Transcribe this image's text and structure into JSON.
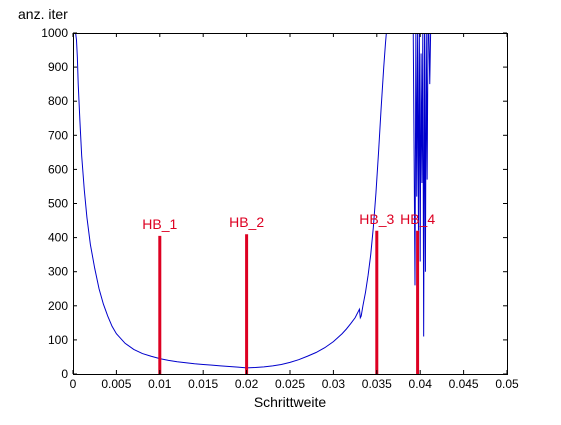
{
  "chart_data": {
    "type": "line",
    "xlabel": "Schrittweite",
    "ylabel": "anz. iter",
    "xlim": [
      0,
      0.05
    ],
    "ylim": [
      0,
      1000
    ],
    "xticks": [
      {
        "value": 0,
        "label": "0"
      },
      {
        "value": 0.005,
        "label": "0.005"
      },
      {
        "value": 0.01,
        "label": "0.01"
      },
      {
        "value": 0.015,
        "label": "0.015"
      },
      {
        "value": 0.02,
        "label": "0.02"
      },
      {
        "value": 0.025,
        "label": "0.025"
      },
      {
        "value": 0.03,
        "label": "0.03"
      },
      {
        "value": 0.035,
        "label": "0.035"
      },
      {
        "value": 0.04,
        "label": "0.04"
      },
      {
        "value": 0.045,
        "label": "0.045"
      },
      {
        "value": 0.05,
        "label": "0.05"
      }
    ],
    "yticks": [
      {
        "value": 0,
        "label": "0"
      },
      {
        "value": 100,
        "label": "100"
      },
      {
        "value": 200,
        "label": "200"
      },
      {
        "value": 300,
        "label": "300"
      },
      {
        "value": 400,
        "label": "400"
      },
      {
        "value": 500,
        "label": "500"
      },
      {
        "value": 600,
        "label": "600"
      },
      {
        "value": 700,
        "label": "700"
      },
      {
        "value": 800,
        "label": "800"
      },
      {
        "value": 900,
        "label": "900"
      },
      {
        "value": 1000,
        "label": "1000"
      }
    ],
    "grid": false,
    "series": [
      {
        "color": "#0000cc",
        "x": [
          0.0003,
          0.0004,
          0.0005,
          0.0006,
          0.0008,
          0.001,
          0.0013,
          0.0016,
          0.002,
          0.0025,
          0.003,
          0.0035,
          0.004,
          0.0045,
          0.005,
          0.006,
          0.007,
          0.008,
          0.009,
          0.01,
          0.011,
          0.012,
          0.013,
          0.014,
          0.015,
          0.016,
          0.017,
          0.018,
          0.019,
          0.02,
          0.021,
          0.022,
          0.023,
          0.024,
          0.025,
          0.026,
          0.027,
          0.028,
          0.029,
          0.03,
          0.031,
          0.0315,
          0.032,
          0.0325,
          0.033,
          0.0331,
          0.0332,
          0.0334,
          0.0337,
          0.034,
          0.0343,
          0.0346,
          0.0349,
          0.0352,
          0.0355,
          0.0358,
          0.036,
          0.0361
        ],
        "y": [
          1000,
          980,
          930,
          850,
          740,
          640,
          540,
          460,
          380,
          310,
          250,
          205,
          170,
          140,
          118,
          90,
          72,
          60,
          52,
          45,
          40,
          36,
          33,
          30,
          28,
          26,
          24,
          22,
          20,
          18,
          19,
          21,
          24,
          28,
          34,
          42,
          52,
          63,
          77,
          95,
          118,
          132,
          148,
          165,
          190,
          165,
          170,
          200,
          240,
          290,
          350,
          430,
          530,
          650,
          780,
          900,
          970,
          1000
        ]
      },
      {
        "color": "#0000cc",
        "x": [
          0.0392,
          0.0393,
          0.0394,
          0.0395,
          0.0396,
          0.0397,
          0.0398,
          0.0399,
          0.04,
          0.0401,
          0.0402,
          0.0403,
          0.0404,
          0.0405,
          0.0406,
          0.0407,
          0.0408,
          0.0409,
          0.041,
          0.0411,
          0.0412
        ],
        "y": [
          1000,
          640,
          260,
          1000,
          520,
          1000,
          420,
          1000,
          330,
          940,
          560,
          1000,
          110,
          1000,
          300,
          1000,
          570,
          1000,
          1000,
          850,
          1000
        ]
      }
    ],
    "markers": [
      {
        "x": 0.01,
        "height": 405,
        "label": "HB_1",
        "color": "#dd0022"
      },
      {
        "x": 0.02,
        "height": 410,
        "label": "HB_2",
        "color": "#dd0022"
      },
      {
        "x": 0.035,
        "height": 420,
        "label": "HB_3",
        "color": "#dd0022"
      },
      {
        "x": 0.0397,
        "height": 420,
        "label": "HB_4",
        "color": "#dd0022"
      }
    ]
  }
}
